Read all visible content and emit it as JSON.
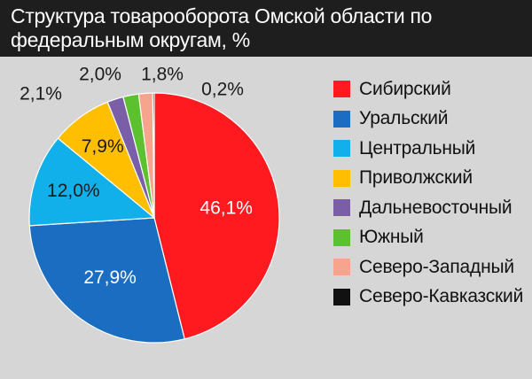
{
  "header": {
    "title": "Структура товарооборота Омской области по федеральным округам, %"
  },
  "colors": {
    "background": "#d6d6d6",
    "header_bg": "#1e1e1e",
    "header_text": "#ffffff"
  },
  "chart_data": {
    "type": "pie",
    "title": "Структура товарооборота Омской области по федеральным округам, %",
    "legend_position": "right",
    "start": "top, clockwise",
    "slices": [
      {
        "name": "Сибирский",
        "value": 46.1,
        "label": "46,1%",
        "color": "#ff1a1f"
      },
      {
        "name": "Уральский",
        "value": 27.9,
        "label": "27,9%",
        "color": "#1b6dc1"
      },
      {
        "name": "Центральный",
        "value": 12.0,
        "label": "12,0%",
        "color": "#12b0ea"
      },
      {
        "name": "Приволжский",
        "value": 7.9,
        "label": "7,9%",
        "color": "#ffbf00"
      },
      {
        "name": "Дальневосточный",
        "value": 2.1,
        "label": "2,1%",
        "color": "#7a5ea8"
      },
      {
        "name": "Южный",
        "value": 2.0,
        "label": "2,0%",
        "color": "#5cc12f"
      },
      {
        "name": "Северо-Западный",
        "value": 1.8,
        "label": "1,8%",
        "color": "#f7a48e"
      },
      {
        "name": "Северо-Кавказский",
        "value": 0.2,
        "label": "0,2%",
        "color": "#111111"
      }
    ]
  }
}
